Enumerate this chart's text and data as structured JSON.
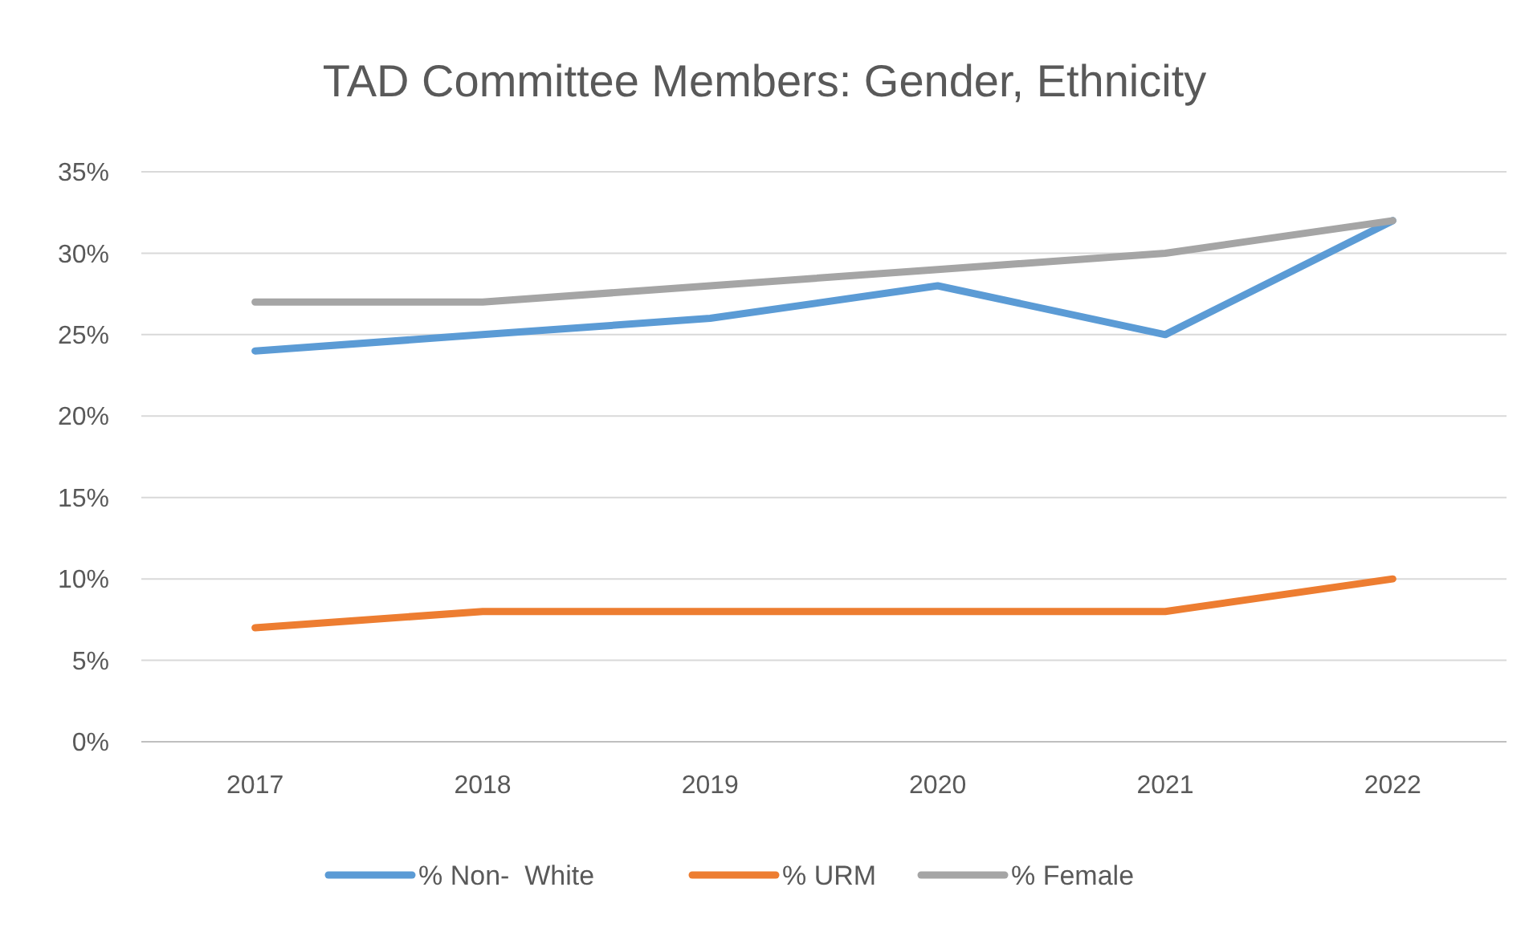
{
  "chart_data": {
    "type": "line",
    "title": "TAD Committee Members: Gender, Ethnicity",
    "categories": [
      "2017",
      "2018",
      "2019",
      "2020",
      "2021",
      "2022"
    ],
    "series": [
      {
        "name": "% Non-  White",
        "color": "#5b9bd5",
        "values": [
          24,
          25,
          26,
          28,
          25,
          32
        ]
      },
      {
        "name": "% URM",
        "color": "#ed7d31",
        "values": [
          7,
          8,
          8,
          8,
          8,
          10
        ]
      },
      {
        "name": "% Female",
        "color": "#a5a5a5",
        "values": [
          27,
          27,
          28,
          29,
          30,
          32
        ]
      }
    ],
    "ylim": [
      0,
      35
    ],
    "yticks": [
      {
        "value": 0,
        "label": "0%"
      },
      {
        "value": 5,
        "label": "5%"
      },
      {
        "value": 10,
        "label": "10%"
      },
      {
        "value": 15,
        "label": "15%"
      },
      {
        "value": 20,
        "label": "20%"
      },
      {
        "value": 25,
        "label": "25%"
      },
      {
        "value": 30,
        "label": "30%"
      },
      {
        "value": 35,
        "label": "35%"
      }
    ],
    "grid": "y",
    "legend": "bottom",
    "marker": "none",
    "line_style": "solid"
  }
}
